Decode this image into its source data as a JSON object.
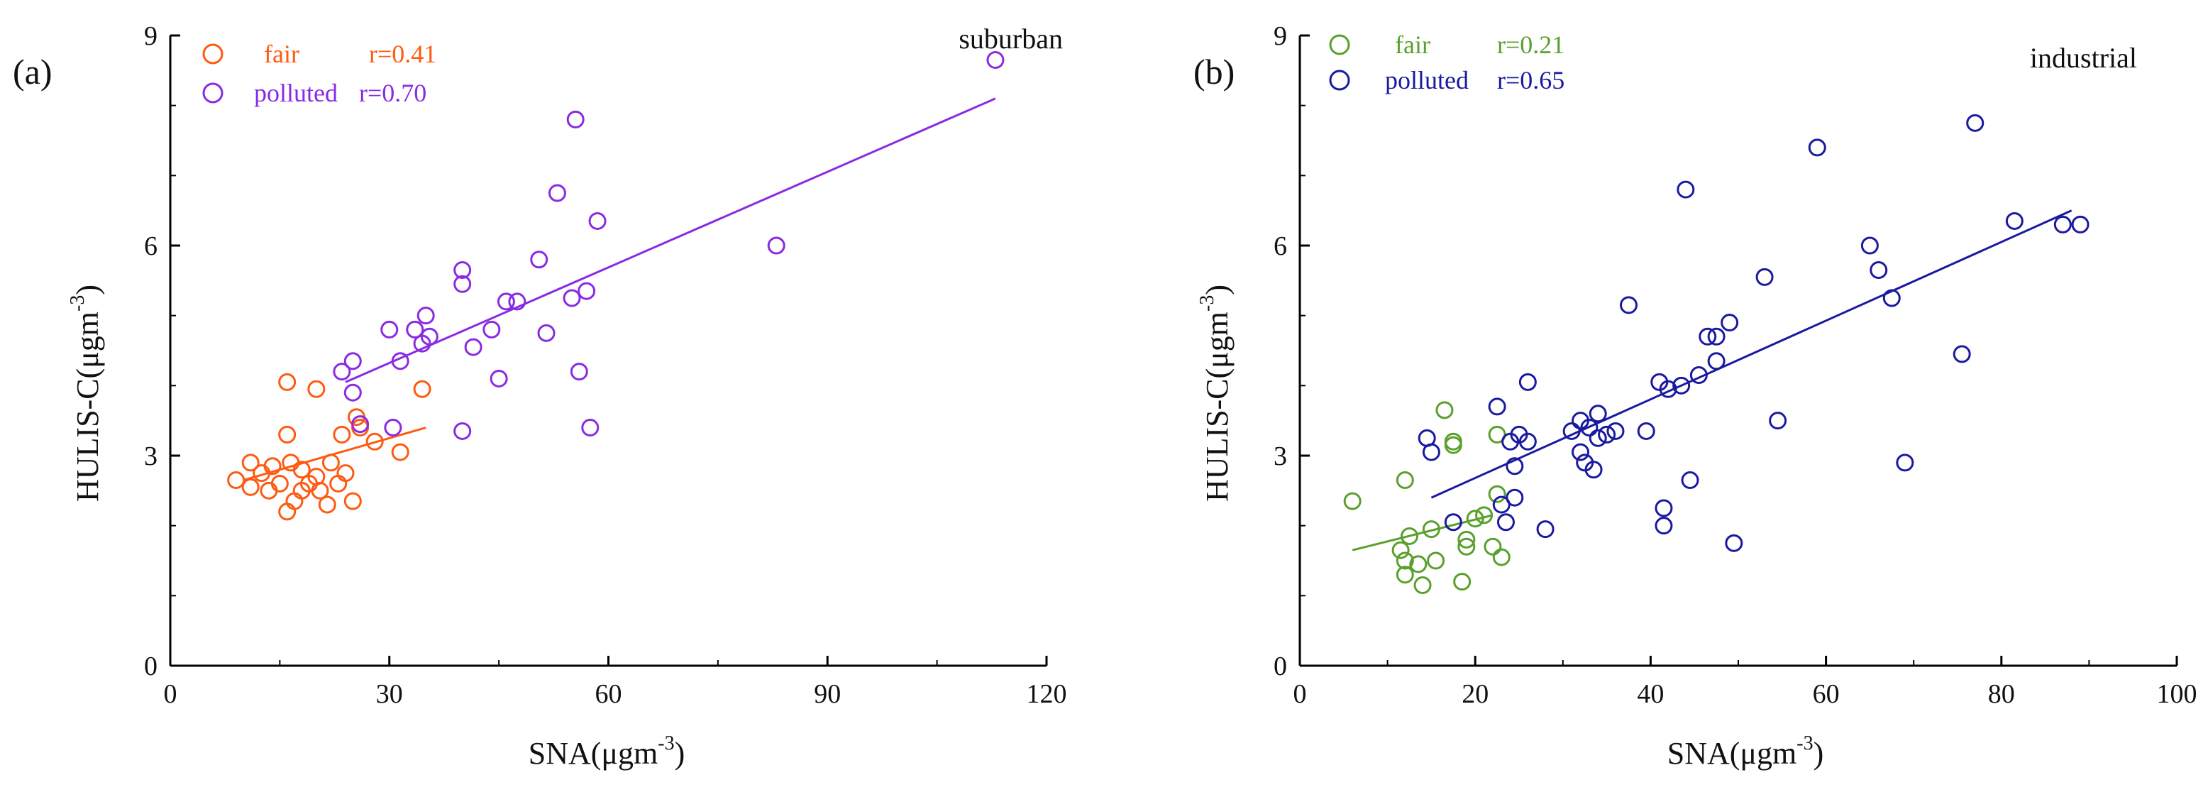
{
  "chart_data": [
    {
      "panel_label": "(a)",
      "site": "suburban",
      "type": "scatter",
      "xlabel": "SNA(μgm",
      "xlabel_exp": "-3",
      "xlabel_close": ")",
      "ylabel": "HULIS-C(μgm",
      "ylabel_exp": "-3",
      "ylabel_close": ")",
      "xlim": [
        0,
        120
      ],
      "ylim": [
        0,
        9
      ],
      "xticks": [
        0,
        30,
        60,
        90,
        120
      ],
      "yticks": [
        0,
        3,
        6,
        9
      ],
      "series": [
        {
          "name": "fair",
          "r_label": "r=0.41",
          "color": "#ff5a12",
          "points": [
            [
              9,
              2.65
            ],
            [
              11,
              2.9
            ],
            [
              11,
              2.55
            ],
            [
              12.5,
              2.75
            ],
            [
              13.5,
              2.5
            ],
            [
              14,
              2.85
            ],
            [
              15,
              2.6
            ],
            [
              16,
              3.3
            ],
            [
              16,
              4.05
            ],
            [
              16,
              2.2
            ],
            [
              16.5,
              2.9
            ],
            [
              17,
              2.35
            ],
            [
              18,
              2.8
            ],
            [
              18,
              2.5
            ],
            [
              19,
              2.6
            ],
            [
              20,
              3.95
            ],
            [
              20,
              2.7
            ],
            [
              20.5,
              2.5
            ],
            [
              21.5,
              2.3
            ],
            [
              22,
              2.9
            ],
            [
              23,
              2.6
            ],
            [
              23.5,
              3.3
            ],
            [
              24,
              2.75
            ],
            [
              25,
              2.35
            ],
            [
              25.5,
              3.55
            ],
            [
              26,
              3.4
            ],
            [
              28,
              3.2
            ],
            [
              31.5,
              3.05
            ],
            [
              34.5,
              3.95
            ]
          ],
          "fit": [
            [
              10,
              2.65
            ],
            [
              35,
              3.4
            ]
          ]
        },
        {
          "name": "polluted",
          "r_label": "r=0.70",
          "color": "#8a2be2",
          "points": [
            [
              23.5,
              4.2
            ],
            [
              25,
              4.35
            ],
            [
              25,
              3.9
            ],
            [
              26,
              3.45
            ],
            [
              30,
              4.8
            ],
            [
              30.5,
              3.4
            ],
            [
              31.5,
              4.35
            ],
            [
              33.5,
              4.8
            ],
            [
              34.5,
              4.6
            ],
            [
              35,
              5.0
            ],
            [
              35.5,
              4.7
            ],
            [
              40,
              5.65
            ],
            [
              40,
              5.45
            ],
            [
              40,
              3.35
            ],
            [
              41.5,
              4.55
            ],
            [
              44,
              4.8
            ],
            [
              45,
              4.1
            ],
            [
              46,
              5.2
            ],
            [
              47.5,
              5.2
            ],
            [
              50.5,
              5.8
            ],
            [
              51.5,
              4.75
            ],
            [
              53,
              6.75
            ],
            [
              55,
              5.25
            ],
            [
              55.5,
              7.8
            ],
            [
              56,
              4.2
            ],
            [
              57,
              5.35
            ],
            [
              57.5,
              3.4
            ],
            [
              58.5,
              6.35
            ],
            [
              83,
              6.0
            ],
            [
              113,
              8.65
            ]
          ],
          "fit": [
            [
              24,
              4.05
            ],
            [
              113,
              8.1
            ]
          ]
        }
      ]
    },
    {
      "panel_label": "(b)",
      "site": "industrial",
      "type": "scatter",
      "xlabel": "SNA(μgm",
      "xlabel_exp": "-3",
      "xlabel_close": ")",
      "ylabel": "HULIS-C(μgm",
      "ylabel_exp": "-3",
      "ylabel_close": ")",
      "xlim": [
        0,
        100
      ],
      "ylim": [
        0,
        9
      ],
      "xticks": [
        0,
        20,
        40,
        60,
        80,
        100
      ],
      "yticks": [
        0,
        3,
        6,
        9
      ],
      "series": [
        {
          "name": "fair",
          "r_label": "r=0.21",
          "color": "#5aa02c",
          "points": [
            [
              6,
              2.35
            ],
            [
              11.5,
              1.65
            ],
            [
              12,
              1.5
            ],
            [
              12,
              2.65
            ],
            [
              12,
              1.3
            ],
            [
              12.5,
              1.85
            ],
            [
              13.5,
              1.45
            ],
            [
              14,
              1.15
            ],
            [
              15,
              1.95
            ],
            [
              15.5,
              1.5
            ],
            [
              16.5,
              3.65
            ],
            [
              17.5,
              3.15
            ],
            [
              17.5,
              3.2
            ],
            [
              18.5,
              1.2
            ],
            [
              19,
              1.7
            ],
            [
              19,
              1.8
            ],
            [
              20,
              2.1
            ],
            [
              21,
              2.15
            ],
            [
              22,
              1.7
            ],
            [
              22.5,
              3.3
            ],
            [
              22.5,
              2.45
            ],
            [
              23,
              1.55
            ]
          ],
          "fit": [
            [
              6,
              1.65
            ],
            [
              22,
              2.15
            ]
          ]
        },
        {
          "name": "polluted",
          "r_label": "r=0.65",
          "color": "#1a1aa0",
          "points": [
            [
              14.5,
              3.25
            ],
            [
              15,
              3.05
            ],
            [
              17.5,
              2.05
            ],
            [
              22.5,
              3.7
            ],
            [
              23,
              2.3
            ],
            [
              23.5,
              2.05
            ],
            [
              24,
              3.2
            ],
            [
              24.5,
              2.4
            ],
            [
              24.5,
              2.85
            ],
            [
              25,
              3.3
            ],
            [
              26,
              3.2
            ],
            [
              26,
              4.05
            ],
            [
              28,
              1.95
            ],
            [
              31,
              3.35
            ],
            [
              32,
              3.5
            ],
            [
              32,
              3.05
            ],
            [
              32.5,
              2.9
            ],
            [
              33,
              3.4
            ],
            [
              33.5,
              2.8
            ],
            [
              34,
              3.25
            ],
            [
              34,
              3.6
            ],
            [
              35,
              3.3
            ],
            [
              36,
              3.35
            ],
            [
              37.5,
              5.15
            ],
            [
              39.5,
              3.35
            ],
            [
              41,
              4.05
            ],
            [
              41.5,
              2.25
            ],
            [
              41.5,
              2.0
            ],
            [
              42,
              3.95
            ],
            [
              43.5,
              4.0
            ],
            [
              44,
              6.8
            ],
            [
              44.5,
              2.65
            ],
            [
              45.5,
              4.15
            ],
            [
              46.5,
              4.7
            ],
            [
              47.5,
              4.7
            ],
            [
              47.5,
              4.35
            ],
            [
              49,
              4.9
            ],
            [
              49.5,
              1.75
            ],
            [
              53,
              5.55
            ],
            [
              54.5,
              3.5
            ],
            [
              59,
              7.4
            ],
            [
              65,
              6.0
            ],
            [
              66,
              5.65
            ],
            [
              67.5,
              5.25
            ],
            [
              69,
              2.9
            ],
            [
              75.5,
              4.45
            ],
            [
              77,
              7.75
            ],
            [
              81.5,
              6.35
            ],
            [
              87,
              6.3
            ],
            [
              89,
              6.3
            ]
          ],
          "fit": [
            [
              15,
              2.4
            ],
            [
              88,
              6.5
            ]
          ]
        }
      ]
    }
  ]
}
